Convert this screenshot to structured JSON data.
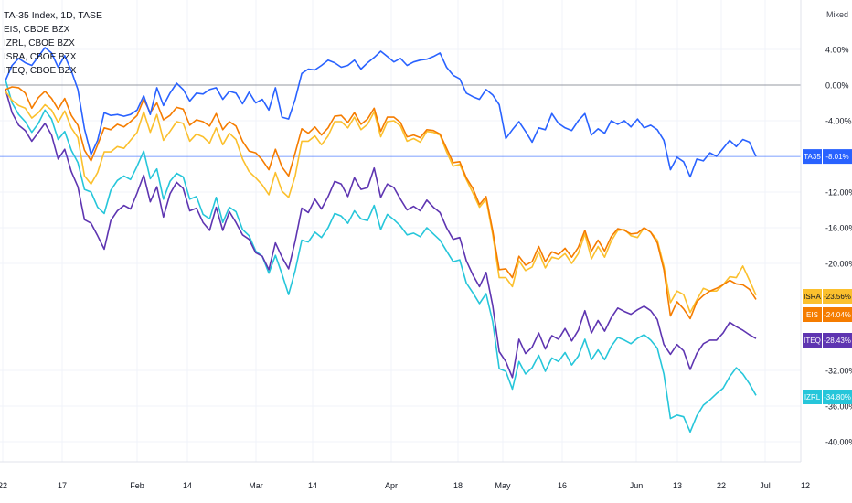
{
  "legend": {
    "title": "TA-35 Index, 1D, TASE",
    "rows": [
      "EIS, CBOE BZX",
      "IZRL, CBOE BZX",
      "ISRA, CBOE BZX",
      "ITEQ, CBOE BZX"
    ]
  },
  "scale_mode": "Mixed",
  "chart_data": {
    "type": "line",
    "yunit": "%",
    "ylim": [
      -42,
      6
    ],
    "x_ticks": [
      "22",
      "17",
      "Feb",
      "14",
      "Mar",
      "14",
      "Apr",
      "18",
      "May",
      "16",
      "Jun",
      "13",
      "22",
      "Jul",
      "12"
    ],
    "y_ticks": [
      "4.00%",
      "0.00%",
      "-4.00%",
      "-12.00%",
      "-16.00%",
      "-20.00%",
      "-32.00%",
      "-36.00%",
      "-40.00%"
    ],
    "reference_line": 0,
    "series": [
      {
        "name": "TA35",
        "color": "#2962ff",
        "last": -8.01,
        "last_label": "-8.01%",
        "values": [
          0.5,
          2.2,
          3.0,
          2.5,
          2.2,
          3.2,
          4.2,
          3.6,
          2.0,
          3.3,
          1.6,
          -0.5,
          -4.9,
          -7.8,
          -6.2,
          -3.1,
          -3.4,
          -3.3,
          -3.5,
          -3.3,
          -2.8,
          -1.2,
          -3.3,
          -0.3,
          -2.3,
          -0.9,
          0.2,
          -0.5,
          -1.8,
          -0.9,
          -1.0,
          -0.5,
          -0.3,
          -1.6,
          -0.7,
          -0.9,
          -2.1,
          -0.8,
          -2.0,
          -1.6,
          -2.8,
          -0.3,
          -3.6,
          -3.8,
          -1.6,
          1.3,
          1.8,
          1.7,
          2.2,
          2.8,
          2.5,
          2.0,
          2.2,
          2.8,
          1.8,
          2.5,
          3.1,
          3.8,
          3.2,
          2.6,
          3.0,
          2.2,
          2.6,
          2.8,
          2.9,
          3.2,
          3.6,
          2.0,
          1.1,
          0.7,
          -0.9,
          -1.3,
          -1.6,
          -0.5,
          -1.1,
          -2.2,
          -6.0,
          -5.0,
          -4.1,
          -5.2,
          -6.4,
          -4.8,
          -5.0,
          -3.2,
          -4.3,
          -4.8,
          -5.1,
          -4.0,
          -3.2,
          -5.6,
          -4.9,
          -5.4,
          -4.0,
          -4.4,
          -4.0,
          -4.7,
          -3.8,
          -4.8,
          -4.5,
          -5.0,
          -6.2,
          -9.5,
          -8.1,
          -8.6,
          -10.3,
          -8.3,
          -8.5,
          -7.6,
          -8.0,
          -7.1,
          -6.2,
          -6.9,
          -6.1,
          -6.4,
          -8.01
        ]
      },
      {
        "name": "ISRA",
        "color": "#fbc02d",
        "last": -23.56,
        "last_label": "-23.56%",
        "values": [
          -0.7,
          -1.7,
          -2.3,
          -2.6,
          -3.7,
          -3.1,
          -2.2,
          -2.8,
          -4.2,
          -2.9,
          -4.8,
          -5.9,
          -10.2,
          -11.1,
          -9.8,
          -7.5,
          -7.5,
          -6.9,
          -7.1,
          -6.2,
          -5.3,
          -3.0,
          -5.3,
          -3.3,
          -6.2,
          -5.2,
          -4.1,
          -4.3,
          -6.3,
          -5.5,
          -5.8,
          -6.5,
          -4.8,
          -6.7,
          -5.4,
          -6.1,
          -8.3,
          -9.7,
          -10.4,
          -11.2,
          -12.3,
          -9.8,
          -11.9,
          -12.6,
          -10.2,
          -6.3,
          -6.3,
          -5.7,
          -6.7,
          -5.7,
          -4.1,
          -4.1,
          -4.8,
          -3.6,
          -5.0,
          -4.4,
          -3.0,
          -5.8,
          -4.1,
          -4.0,
          -4.6,
          -6.3,
          -6.0,
          -6.4,
          -5.2,
          -5.3,
          -5.6,
          -7.5,
          -9.1,
          -8.9,
          -10.6,
          -12.1,
          -13.7,
          -12.8,
          -16.7,
          -21.6,
          -21.6,
          -22.6,
          -19.7,
          -20.8,
          -20.4,
          -18.7,
          -20.5,
          -19.3,
          -19.5,
          -18.9,
          -20.0,
          -18.9,
          -16.7,
          -19.5,
          -18.1,
          -19.3,
          -17.5,
          -16.3,
          -16.2,
          -16.9,
          -17.1,
          -16.0,
          -16.5,
          -17.4,
          -20.3,
          -24.4,
          -23.1,
          -23.5,
          -25.5,
          -24.1,
          -22.8,
          -23.1,
          -23.1,
          -22.4,
          -21.5,
          -21.6,
          -20.3,
          -21.9,
          -23.56
        ]
      },
      {
        "name": "EIS",
        "color": "#f57c00",
        "last": -24.04,
        "last_label": "-24.04%",
        "values": [
          -0.5,
          -0.2,
          -0.3,
          -0.9,
          -2.6,
          -1.4,
          -0.7,
          -1.5,
          -2.7,
          -1.5,
          -3.4,
          -4.5,
          -7.3,
          -8.5,
          -6.7,
          -4.8,
          -5.0,
          -4.4,
          -4.7,
          -4.1,
          -3.4,
          -1.6,
          -3.1,
          -2.0,
          -3.9,
          -3.4,
          -2.5,
          -2.7,
          -4.5,
          -3.9,
          -4.1,
          -4.6,
          -3.2,
          -5.0,
          -4.1,
          -4.6,
          -6.3,
          -7.4,
          -7.6,
          -8.4,
          -9.5,
          -7.2,
          -9.2,
          -10.2,
          -7.6,
          -4.9,
          -5.4,
          -4.7,
          -5.6,
          -4.8,
          -3.5,
          -3.4,
          -4.2,
          -3.1,
          -4.4,
          -3.8,
          -2.6,
          -5.2,
          -3.6,
          -3.6,
          -4.2,
          -5.8,
          -5.6,
          -5.9,
          -5.0,
          -5.1,
          -5.5,
          -7.1,
          -8.7,
          -8.6,
          -10.4,
          -11.6,
          -13.4,
          -12.5,
          -16.3,
          -20.7,
          -20.6,
          -21.6,
          -19.2,
          -20.2,
          -19.8,
          -18.1,
          -19.8,
          -18.7,
          -19.0,
          -18.3,
          -19.3,
          -18.2,
          -16.3,
          -18.6,
          -17.4,
          -18.6,
          -17.0,
          -16.1,
          -16.3,
          -16.7,
          -16.6,
          -16.0,
          -16.5,
          -17.7,
          -20.7,
          -25.9,
          -24.3,
          -25.1,
          -26.2,
          -24.3,
          -23.6,
          -23.1,
          -22.8,
          -22.4,
          -21.9,
          -22.3,
          -22.4,
          -22.9,
          -24.04
        ]
      },
      {
        "name": "ITEQ",
        "color": "#5e35b1",
        "last": -28.43,
        "last_label": "-28.43%",
        "values": [
          -0.5,
          -3.1,
          -4.5,
          -5.1,
          -6.3,
          -5.3,
          -4.3,
          -5.6,
          -8.3,
          -7.2,
          -9.7,
          -11.4,
          -15.1,
          -15.5,
          -16.9,
          -18.4,
          -15.2,
          -14.1,
          -13.5,
          -13.9,
          -12.1,
          -10.1,
          -13.1,
          -11.4,
          -14.8,
          -12.2,
          -10.9,
          -11.6,
          -14.1,
          -13.8,
          -15.4,
          -16.3,
          -13.7,
          -16.3,
          -14.2,
          -15.4,
          -16.8,
          -17.3,
          -18.8,
          -19.2,
          -20.7,
          -17.7,
          -19.3,
          -20.6,
          -17.5,
          -13.8,
          -14.3,
          -12.8,
          -13.9,
          -12.5,
          -10.8,
          -11.1,
          -12.5,
          -10.4,
          -11.7,
          -11.5,
          -9.3,
          -12.6,
          -11.1,
          -11.5,
          -12.8,
          -14.0,
          -13.6,
          -14.1,
          -12.9,
          -13.7,
          -14.3,
          -16.0,
          -17.3,
          -17.1,
          -19.7,
          -21.3,
          -22.6,
          -21.0,
          -24.7,
          -29.9,
          -31.0,
          -32.8,
          -28.5,
          -30.1,
          -29.4,
          -27.8,
          -29.6,
          -28.1,
          -28.5,
          -27.3,
          -28.7,
          -27.5,
          -25.3,
          -27.8,
          -26.4,
          -27.6,
          -26.1,
          -25.0,
          -25.4,
          -25.7,
          -25.2,
          -24.8,
          -25.3,
          -26.3,
          -29.1,
          -30.2,
          -29.1,
          -29.8,
          -31.9,
          -30.1,
          -29.0,
          -28.6,
          -28.6,
          -27.8,
          -26.6,
          -27.1,
          -27.5,
          -28.0,
          -28.43
        ]
      },
      {
        "name": "IZRL",
        "color": "#26c6da",
        "last": -34.8,
        "last_label": "-34.80%",
        "values": [
          0.6,
          -2.0,
          -3.3,
          -4.1,
          -5.3,
          -4.3,
          -2.8,
          -3.8,
          -6.1,
          -5.2,
          -7.3,
          -8.7,
          -11.7,
          -12.0,
          -13.7,
          -14.4,
          -11.8,
          -10.7,
          -10.2,
          -10.6,
          -9.1,
          -7.4,
          -10.5,
          -9.4,
          -12.8,
          -10.8,
          -9.9,
          -10.3,
          -12.8,
          -12.5,
          -14.5,
          -15.0,
          -12.6,
          -15.4,
          -13.7,
          -14.2,
          -16.2,
          -16.9,
          -18.6,
          -19.2,
          -21.1,
          -19.1,
          -21.2,
          -23.5,
          -20.8,
          -17.4,
          -17.6,
          -16.5,
          -17.1,
          -16.0,
          -14.4,
          -14.7,
          -15.5,
          -14.1,
          -15.0,
          -15.2,
          -13.5,
          -16.2,
          -14.5,
          -15.1,
          -15.8,
          -16.8,
          -16.6,
          -17.0,
          -16.0,
          -16.7,
          -17.4,
          -18.6,
          -19.8,
          -19.6,
          -22.2,
          -23.3,
          -24.5,
          -23.4,
          -26.5,
          -31.8,
          -32.1,
          -34.1,
          -31.0,
          -32.4,
          -31.7,
          -30.3,
          -32.1,
          -30.6,
          -31.0,
          -30.0,
          -31.4,
          -30.4,
          -28.5,
          -30.8,
          -29.7,
          -30.8,
          -29.3,
          -28.3,
          -28.6,
          -29.0,
          -28.4,
          -28.0,
          -28.6,
          -29.5,
          -32.4,
          -37.4,
          -37.0,
          -37.2,
          -38.9,
          -37.1,
          -35.9,
          -35.3,
          -34.6,
          -34.0,
          -32.7,
          -31.7,
          -32.4,
          -33.5,
          -34.8
        ]
      }
    ]
  }
}
